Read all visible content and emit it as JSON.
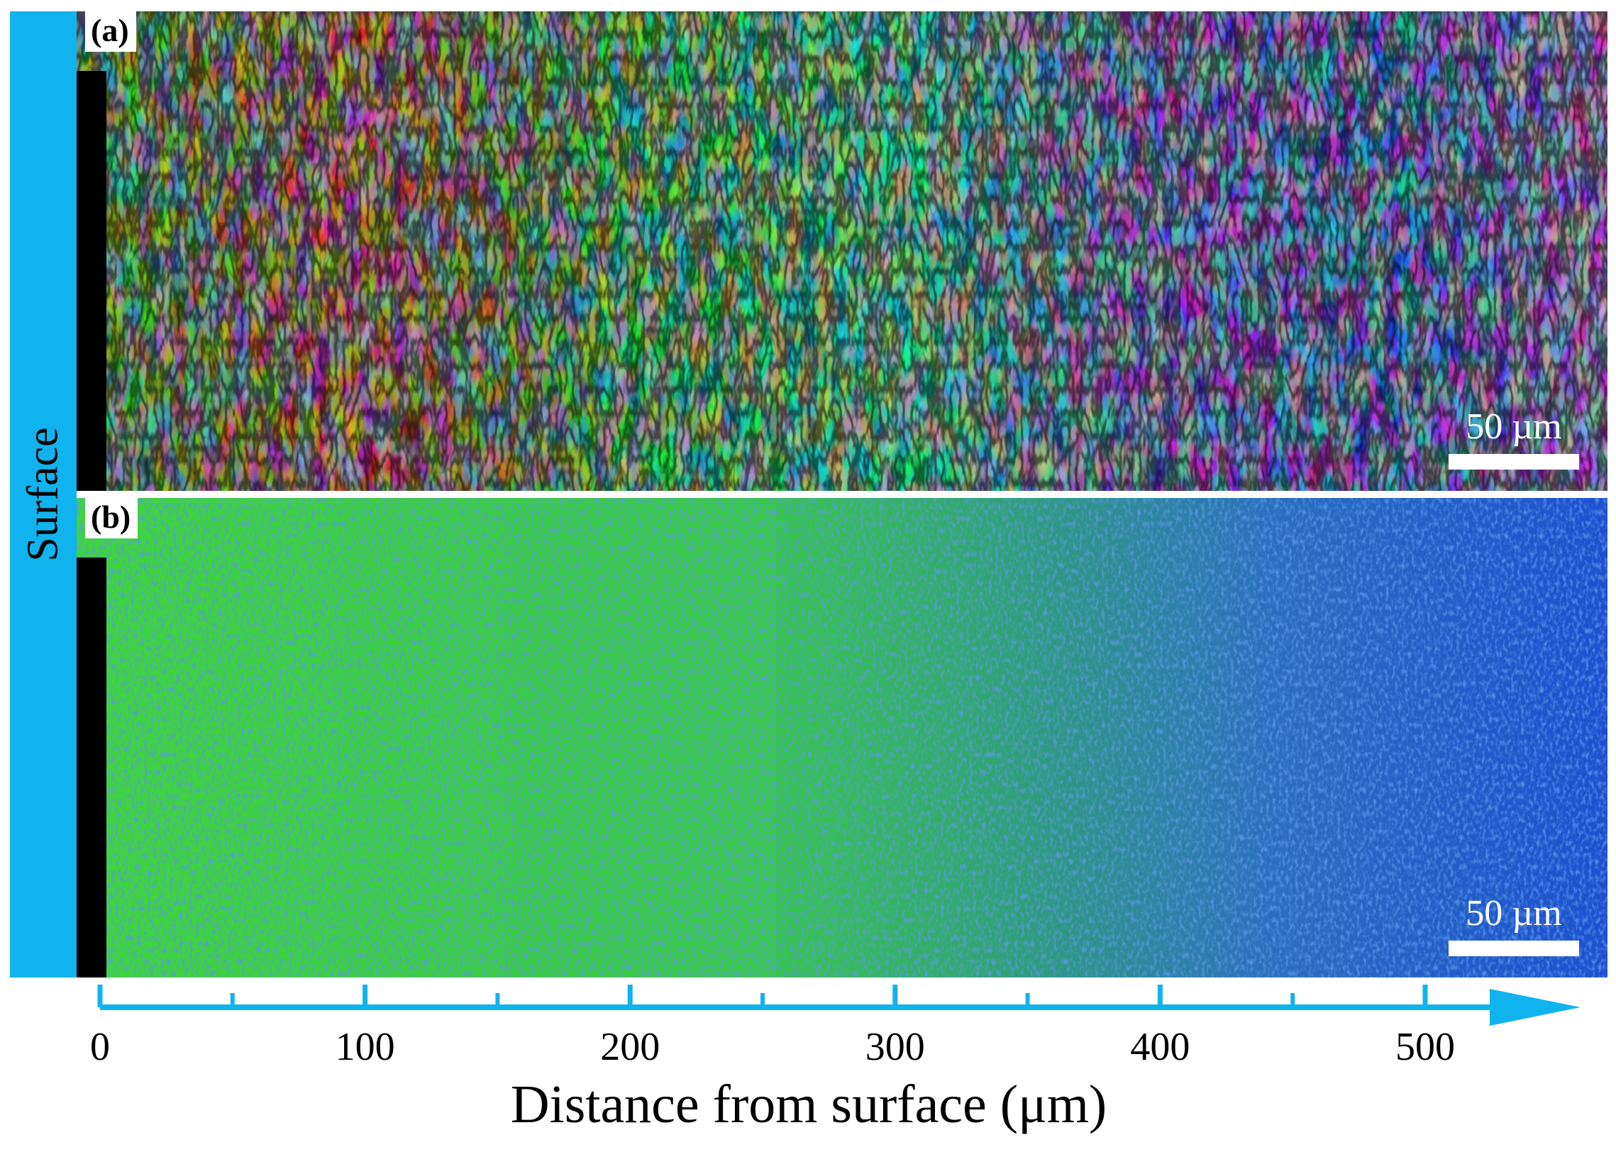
{
  "side_label": "Surface",
  "panels": [
    {
      "label": "(a)",
      "scale_bar": "50 µm"
    },
    {
      "label": "(b)",
      "scale_bar": "50 µm"
    }
  ],
  "axis": {
    "title": "Distance from surface (μm)",
    "tick_labels": [
      "0",
      "100",
      "200",
      "300",
      "400",
      "500"
    ],
    "major_ticks": [
      0,
      100,
      200,
      300,
      400,
      500
    ],
    "minor_ticks": [
      50,
      150,
      250,
      350,
      450
    ],
    "range": [
      0,
      560
    ],
    "color": "#11b3ee"
  },
  "colors": {
    "surface_bar": "#11b3ee",
    "map_b_green": "#3fd63a",
    "map_b_blue": "#1d4fd0"
  }
}
